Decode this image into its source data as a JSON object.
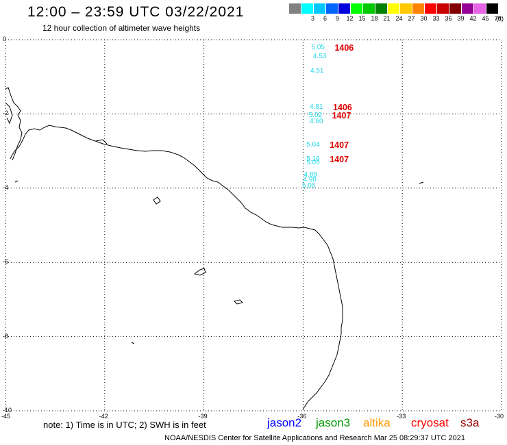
{
  "header": {
    "title": "12:00 – 23:59 UTC 03/22/2021",
    "subtitle": "12 hour collection of altimeter wave heights"
  },
  "legend": {
    "unit": "(ft)",
    "items": [
      {
        "label": "",
        "color": "#808080"
      },
      {
        "label": "3",
        "color": "#00ffff"
      },
      {
        "label": "6",
        "color": "#00c8ff"
      },
      {
        "label": "9",
        "color": "#0064ff"
      },
      {
        "label": "12",
        "color": "#0000dc"
      },
      {
        "label": "15",
        "color": "#00ff00"
      },
      {
        "label": "18",
        "color": "#00c800"
      },
      {
        "label": "21",
        "color": "#008200"
      },
      {
        "label": "24",
        "color": "#ffff00"
      },
      {
        "label": "27",
        "color": "#ffc800"
      },
      {
        "label": "30",
        "color": "#ff8200"
      },
      {
        "label": "33",
        "color": "#ff0000"
      },
      {
        "label": "36",
        "color": "#c80000"
      },
      {
        "label": "39",
        "color": "#820000"
      },
      {
        "label": "42",
        "color": "#960096"
      },
      {
        "label": "45",
        "color": "#e664e6"
      },
      {
        "label": "70",
        "color": "#000000"
      }
    ]
  },
  "map": {
    "lat_ticks": [
      "0",
      "-2",
      "-4",
      "-6",
      "-8",
      "-10"
    ],
    "lon_ticks": [
      "-45",
      "-42",
      "-39",
      "-36",
      "-33",
      "-30"
    ],
    "lon_range": [
      -45,
      -30
    ],
    "lat_range": [
      -10,
      0
    ],
    "observations": [
      {
        "lon": -35.75,
        "lat": -0.22,
        "swh": "5.05",
        "time": "1406"
      },
      {
        "lon": -35.7,
        "lat": -0.47,
        "swh": "4.53",
        "time": ""
      },
      {
        "lon": -35.78,
        "lat": -0.85,
        "swh": "4.51",
        "time": ""
      },
      {
        "lon": -35.8,
        "lat": -1.83,
        "swh": "4.81",
        "time": "1406"
      },
      {
        "lon": -35.83,
        "lat": -2.04,
        "swh": "5.02",
        "time": "1407"
      },
      {
        "lon": -35.8,
        "lat": -2.22,
        "swh": "4.60",
        "time": ""
      },
      {
        "lon": -35.9,
        "lat": -2.85,
        "swh": "5.04",
        "time": "1407"
      },
      {
        "lon": -35.9,
        "lat": -3.23,
        "swh": "5.16",
        "time": "1407"
      },
      {
        "lon": -35.9,
        "lat": -3.33,
        "swh": "5.05",
        "time": ""
      },
      {
        "lon": -35.98,
        "lat": -3.65,
        "swh": "4.89",
        "time": ""
      },
      {
        "lon": -36.0,
        "lat": -3.78,
        "swh": "4.98",
        "time": ""
      },
      {
        "lon": -36.03,
        "lat": -3.95,
        "swh": "5.05",
        "time": ""
      }
    ]
  },
  "footer": {
    "note": "note:  1) Time is in UTC;  2) SWH is in feet",
    "satellites": [
      {
        "name": "jason2",
        "color": "#0000ff"
      },
      {
        "name": "jason3",
        "color": "#009900"
      },
      {
        "name": "altika",
        "color": "#ff9900"
      },
      {
        "name": "cryosat",
        "color": "#ff0000"
      },
      {
        "name": "s3a",
        "color": "#990000"
      }
    ],
    "credit": "NOAA/NESDIS Center for Satellite Applications and Research     Mar 25 08:29:37 UTC 2021"
  }
}
